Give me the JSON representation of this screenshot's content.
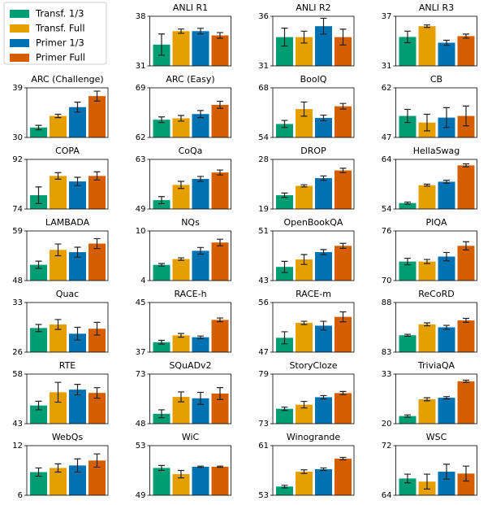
{
  "legend": [
    {
      "name": "Transf. 1/3",
      "color": "#029e73"
    },
    {
      "name": "Transf. Full",
      "color": "#e69f00"
    },
    {
      "name": "Primer 1/3",
      "color": "#0072b2"
    },
    {
      "name": "Primer Full",
      "color": "#d55e00"
    }
  ],
  "chart_data": [
    {
      "type": "bar",
      "title": "ANLI R1",
      "values": [
        34.0,
        35.9,
        35.9,
        35.3
      ],
      "errors": [
        1.5,
        0.3,
        0.4,
        0.4
      ],
      "ylim": [
        31,
        38
      ],
      "yticks": [
        31,
        38
      ]
    },
    {
      "type": "bar",
      "title": "ANLI R2",
      "values": [
        33.9,
        33.9,
        35.0,
        33.9
      ],
      "errors": [
        0.9,
        0.6,
        0.8,
        0.8
      ],
      "ylim": [
        31,
        36
      ],
      "yticks": [
        31,
        36
      ]
    },
    {
      "type": "bar",
      "title": "ANLI R3",
      "values": [
        34.5,
        35.8,
        33.8,
        34.6
      ],
      "errors": [
        0.7,
        0.15,
        0.3,
        0.25
      ],
      "ylim": [
        31,
        37
      ],
      "yticks": [
        31,
        37
      ]
    },
    {
      "type": "bar",
      "title": "ARC (Challenge)",
      "values": [
        31.8,
        33.9,
        35.5,
        37.5
      ],
      "errors": [
        0.4,
        0.3,
        0.9,
        0.9
      ],
      "ylim": [
        30,
        39
      ],
      "yticks": [
        30,
        39
      ]
    },
    {
      "type": "bar",
      "title": "ARC (Easy)",
      "values": [
        64.5,
        64.7,
        65.3,
        66.6
      ],
      "errors": [
        0.4,
        0.4,
        0.5,
        0.5
      ],
      "ylim": [
        62,
        69
      ],
      "yticks": [
        62,
        69
      ]
    },
    {
      "type": "bar",
      "title": "BoolQ",
      "values": [
        57.8,
        62.0,
        59.5,
        62.8
      ],
      "errors": [
        1.0,
        2.0,
        0.8,
        0.8
      ],
      "ylim": [
        54,
        68
      ],
      "yticks": [
        54,
        68
      ]
    },
    {
      "type": "bar",
      "title": "CB",
      "values": [
        53.5,
        51.5,
        53.0,
        53.5
      ],
      "errors": [
        2.0,
        2.5,
        3.0,
        3.0
      ],
      "ylim": [
        47,
        62
      ],
      "yticks": [
        47,
        62
      ]
    },
    {
      "type": "bar",
      "title": "COPA",
      "values": [
        79.0,
        86.0,
        84.0,
        86.0
      ],
      "errors": [
        3.0,
        1.2,
        1.5,
        1.5
      ],
      "ylim": [
        74,
        92
      ],
      "yticks": [
        74,
        92
      ]
    },
    {
      "type": "bar",
      "title": "CoQa",
      "values": [
        51.5,
        55.8,
        57.5,
        59.3
      ],
      "errors": [
        1.0,
        1.0,
        0.7,
        0.7
      ],
      "ylim": [
        49,
        63
      ],
      "yticks": [
        49,
        63
      ]
    },
    {
      "type": "bar",
      "title": "DROP",
      "values": [
        21.5,
        23.2,
        24.6,
        26.0
      ],
      "errors": [
        0.4,
        0.2,
        0.4,
        0.4
      ],
      "ylim": [
        19,
        28
      ],
      "yticks": [
        19,
        28
      ]
    },
    {
      "type": "bar",
      "title": "HellaSwag",
      "values": [
        55.2,
        58.8,
        59.5,
        62.8
      ],
      "errors": [
        0.2,
        0.2,
        0.3,
        0.3
      ],
      "ylim": [
        54,
        64
      ],
      "yticks": [
        54,
        64
      ]
    },
    {
      "type": "bar",
      "title": "LAMBADA",
      "values": [
        51.5,
        54.8,
        54.3,
        56.2
      ],
      "errors": [
        0.8,
        1.3,
        1.1,
        1.1
      ],
      "ylim": [
        48,
        59
      ],
      "yticks": [
        48,
        59
      ]
    },
    {
      "type": "bar",
      "title": "NQs",
      "values": [
        5.9,
        6.6,
        7.6,
        8.6
      ],
      "errors": [
        0.15,
        0.15,
        0.4,
        0.4
      ],
      "ylim": [
        4,
        10
      ],
      "yticks": [
        4,
        10
      ]
    },
    {
      "type": "bar",
      "title": "OpenBookQA",
      "values": [
        45.2,
        46.4,
        47.6,
        48.6
      ],
      "errors": [
        0.9,
        0.8,
        0.4,
        0.4
      ],
      "ylim": [
        43,
        51
      ],
      "yticks": [
        43,
        51
      ]
    },
    {
      "type": "bar",
      "title": "PIQA",
      "values": [
        72.3,
        72.3,
        72.9,
        74.2
      ],
      "errors": [
        0.4,
        0.25,
        0.5,
        0.5
      ],
      "ylim": [
        70,
        76
      ],
      "yticks": [
        70,
        76
      ]
    },
    {
      "type": "bar",
      "title": "Quac",
      "values": [
        29.4,
        29.9,
        28.6,
        29.3
      ],
      "errors": [
        0.5,
        0.7,
        0.9,
        0.9
      ],
      "ylim": [
        26,
        33
      ],
      "yticks": [
        26,
        33
      ]
    },
    {
      "type": "bar",
      "title": "RACE-h",
      "values": [
        38.6,
        39.7,
        39.4,
        42.2
      ],
      "errors": [
        0.3,
        0.3,
        0.2,
        0.3
      ],
      "ylim": [
        37,
        45
      ],
      "yticks": [
        37,
        45
      ]
    },
    {
      "type": "bar",
      "title": "RACE-m",
      "values": [
        49.6,
        52.3,
        51.8,
        53.4
      ],
      "errors": [
        1.1,
        0.3,
        0.8,
        0.9
      ],
      "ylim": [
        47,
        56
      ],
      "yticks": [
        47,
        56
      ]
    },
    {
      "type": "bar",
      "title": "ReCoRD",
      "values": [
        84.7,
        85.8,
        85.5,
        86.2
      ],
      "errors": [
        0.1,
        0.15,
        0.2,
        0.2
      ],
      "ylim": [
        83,
        88
      ],
      "yticks": [
        83,
        88
      ]
    },
    {
      "type": "bar",
      "title": "RTE",
      "values": [
        48.5,
        52.5,
        53.3,
        52.3
      ],
      "errors": [
        1.3,
        3.0,
        1.6,
        1.6
      ],
      "ylim": [
        43,
        58
      ],
      "yticks": [
        43,
        58
      ]
    },
    {
      "type": "bar",
      "title": "SQuADv2",
      "values": [
        53.0,
        61.5,
        60.8,
        63.2
      ],
      "errors": [
        2.0,
        2.5,
        3.0,
        3.0
      ],
      "ylim": [
        48,
        73
      ],
      "yticks": [
        48,
        73
      ]
    },
    {
      "type": "bar",
      "title": "StoryCloze",
      "values": [
        74.8,
        75.3,
        76.2,
        76.7
      ],
      "errors": [
        0.2,
        0.4,
        0.2,
        0.2
      ],
      "ylim": [
        73,
        79
      ],
      "yticks": [
        73,
        79
      ]
    },
    {
      "type": "bar",
      "title": "TriviaQA",
      "values": [
        22.0,
        26.4,
        26.8,
        31.1
      ],
      "errors": [
        0.3,
        0.4,
        0.3,
        0.3
      ],
      "ylim": [
        20,
        33
      ],
      "yticks": [
        20,
        33
      ]
    },
    {
      "type": "bar",
      "title": "WebQs",
      "values": [
        8.8,
        9.3,
        9.6,
        10.2
      ],
      "errors": [
        0.5,
        0.5,
        0.8,
        0.8
      ],
      "ylim": [
        6,
        12
      ],
      "yticks": [
        6,
        12
      ]
    },
    {
      "type": "bar",
      "title": "WiC",
      "values": [
        51.2,
        50.7,
        51.3,
        51.3
      ],
      "errors": [
        0.2,
        0.3,
        0.05,
        0.05
      ],
      "ylim": [
        49,
        53
      ],
      "yticks": [
        49,
        53
      ]
    },
    {
      "type": "bar",
      "title": "Winogrande",
      "values": [
        54.4,
        56.8,
        57.2,
        58.9
      ],
      "errors": [
        0.2,
        0.3,
        0.2,
        0.2
      ],
      "ylim": [
        53,
        61
      ],
      "yticks": [
        53,
        61
      ]
    },
    {
      "type": "bar",
      "title": "WSC",
      "values": [
        66.7,
        66.2,
        67.8,
        67.5
      ],
      "errors": [
        0.7,
        1.2,
        1.2,
        1.2
      ],
      "ylim": [
        64,
        72
      ],
      "yticks": [
        64,
        72
      ]
    }
  ]
}
